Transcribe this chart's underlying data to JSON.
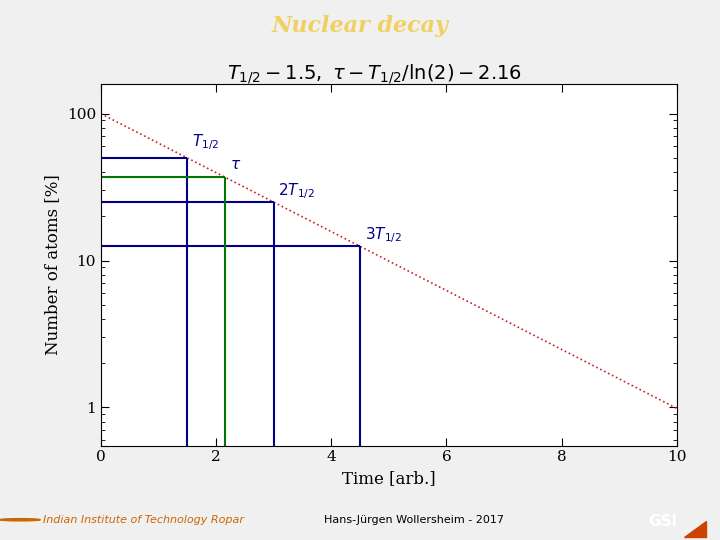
{
  "title": "Nuclear decay",
  "title_color": "#f0d060",
  "title_bg_color": "#1a7fff",
  "formula_text": "$T_{1/2} - 1.5,\\ \\tau - T_{1/2}/\\mathrm{ln}(2) - 2.16$",
  "xlabel": "Time [arb.]",
  "ylabel": "Number of atoms [%]",
  "T_half": 1.5,
  "tau": 2.16,
  "x_min": 0,
  "x_max": 10,
  "y_min": 0.55,
  "y_max": 160,
  "decay_color": "#cc2222",
  "halflife_line_color": "#00008b",
  "tau_line_color": "#007700",
  "footer_left": "Indian Institute of Technology Ropar",
  "footer_right": "Hans-Jürgen Wollersheim - 2017",
  "footer_bg": "#1a7fff",
  "fig_bg": "#f0f0f0"
}
